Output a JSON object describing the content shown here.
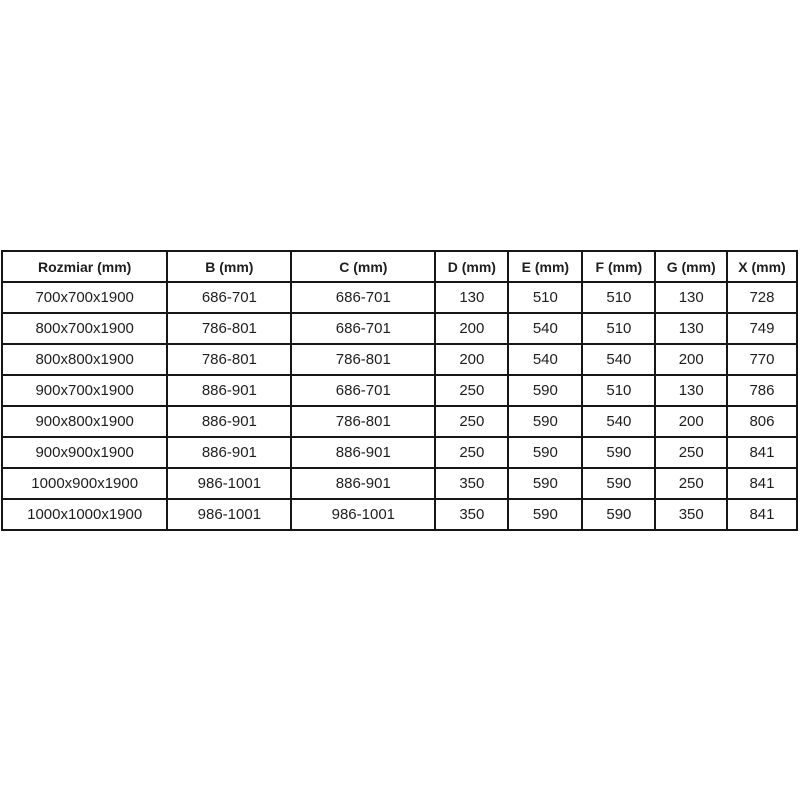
{
  "page": {
    "background": "#ffffff",
    "border_color": "#161616",
    "text_color": "#1e1e1e"
  },
  "chart_data": {
    "type": "table",
    "title": "",
    "columns": [
      "Rozmiar (mm)",
      "B (mm)",
      "C (mm)",
      "D (mm)",
      "E (mm)",
      "F (mm)",
      "G (mm)",
      "X (mm)"
    ],
    "rows": [
      [
        "700x700x1900",
        "686-701",
        "686-701",
        "130",
        "510",
        "510",
        "130",
        "728"
      ],
      [
        "800x700x1900",
        "786-801",
        "686-701",
        "200",
        "540",
        "510",
        "130",
        "749"
      ],
      [
        "800x800x1900",
        "786-801",
        "786-801",
        "200",
        "540",
        "540",
        "200",
        "770"
      ],
      [
        "900x700x1900",
        "886-901",
        "686-701",
        "250",
        "590",
        "510",
        "130",
        "786"
      ],
      [
        "900x800x1900",
        "886-901",
        "786-801",
        "250",
        "590",
        "540",
        "200",
        "806"
      ],
      [
        "900x900x1900",
        "886-901",
        "886-901",
        "250",
        "590",
        "590",
        "250",
        "841"
      ],
      [
        "1000x900x1900",
        "986-1001",
        "886-901",
        "350",
        "590",
        "590",
        "250",
        "841"
      ],
      [
        "1000x1000x1900",
        "986-1001",
        "986-1001",
        "350",
        "590",
        "590",
        "350",
        "841"
      ]
    ]
  }
}
